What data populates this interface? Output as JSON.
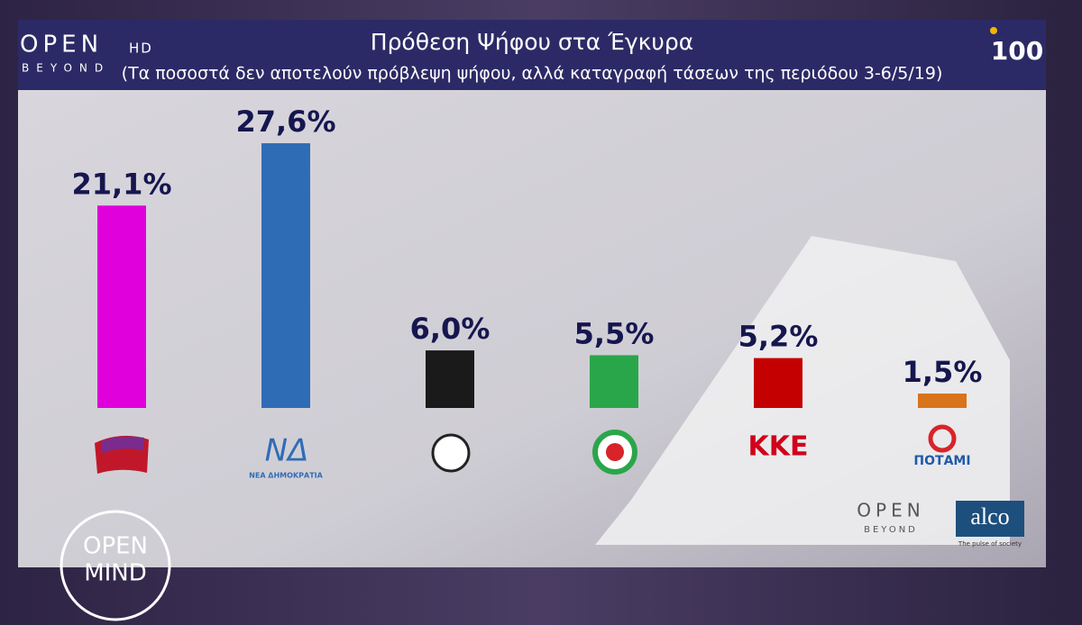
{
  "chart_data": {
    "type": "bar",
    "title": "Πρόθεση Ψήφου στα Έγκυρα",
    "subtitle": "(Τα ποσοστά δεν αποτελούν πρόβλεψη ψήφου, αλλά καταγραφή τάσεων της περιόδου 3-6/5/19)",
    "categories": [
      null,
      "ΝΕΑ ΔΗΜΟΚΡΑΤΙΑ",
      null,
      null,
      "ΚΚΕ",
      "ΠΟΤΑΜΙ"
    ],
    "values": [
      21.1,
      27.6,
      6.0,
      5.5,
      5.2,
      1.5
    ],
    "value_labels": [
      "21,1%",
      "27,6%",
      "6,0%",
      "5,5%",
      "5,2%",
      "1,5%"
    ],
    "colors": [
      "#e000dc",
      "#2f6cb6",
      "#1a1a1a",
      "#2aa64a",
      "#c40000",
      "#d9731c"
    ]
  },
  "branding": {
    "channel": "OPEN",
    "channel_hd": "HD",
    "channel_sub": "BEYOND",
    "nd_logo": "ΝΔ",
    "show_top": "OPEN",
    "show_bottom": "MIND",
    "open_beyond_top": "OPEN",
    "open_beyond_bottom": "BEYOND",
    "pollster": "alco",
    "pollster_tagline": "The pulse of society",
    "anniversary": "100"
  }
}
